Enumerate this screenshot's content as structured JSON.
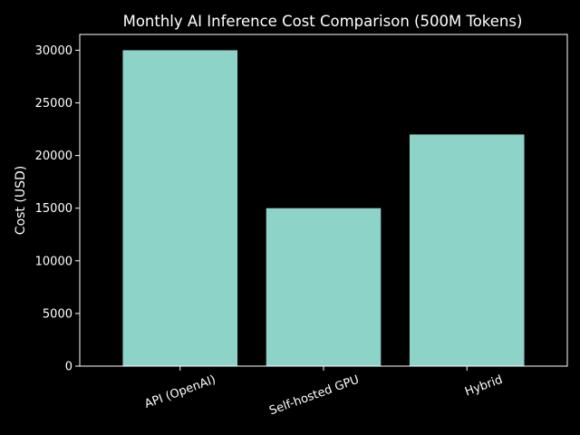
{
  "chart_data": {
    "type": "bar",
    "title": "Monthly AI Inference Cost Comparison (500M Tokens)",
    "xlabel": "",
    "ylabel": "Cost (USD)",
    "categories": [
      "API (OpenAI)",
      "Self-hosted GPU",
      "Hybrid"
    ],
    "values": [
      30000,
      15000,
      22000
    ],
    "ylim": [
      0,
      31500
    ],
    "yticks": [
      0,
      5000,
      10000,
      15000,
      20000,
      25000,
      30000
    ],
    "ytick_labels": [
      "0",
      "5000",
      "10000",
      "15000",
      "20000",
      "25000",
      "30000"
    ],
    "grid": false,
    "legend": "none",
    "colors": {
      "bar": "#8dd3c7",
      "background": "#000000",
      "text": "#ffffff",
      "axis": "#ffffff"
    }
  }
}
